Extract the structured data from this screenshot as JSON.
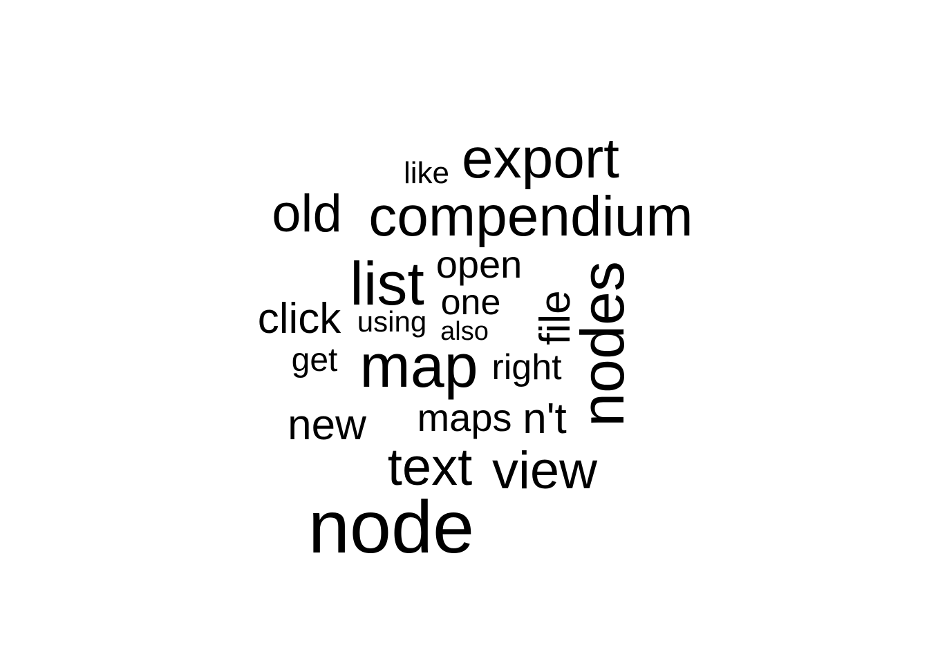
{
  "word_cloud": {
    "words": [
      {
        "id": "node",
        "text": "node",
        "vertical": false
      },
      {
        "id": "compendium",
        "text": "compendium",
        "vertical": false
      },
      {
        "id": "export",
        "text": "export",
        "vertical": false
      },
      {
        "id": "map",
        "text": "map",
        "vertical": false
      },
      {
        "id": "list",
        "text": "list",
        "vertical": false
      },
      {
        "id": "nodes",
        "text": "nodes",
        "vertical": true
      },
      {
        "id": "old",
        "text": "old",
        "vertical": false
      },
      {
        "id": "view",
        "text": "view",
        "vertical": false
      },
      {
        "id": "text",
        "text": "text",
        "vertical": false
      },
      {
        "id": "file",
        "text": "file",
        "vertical": true
      },
      {
        "id": "open",
        "text": "open",
        "vertical": false
      },
      {
        "id": "click",
        "text": "click",
        "vertical": false
      },
      {
        "id": "new",
        "text": "new",
        "vertical": false
      },
      {
        "id": "one",
        "text": "one",
        "vertical": false
      },
      {
        "id": "maps",
        "text": "maps",
        "vertical": false
      },
      {
        "id": "nt",
        "text": "n't",
        "vertical": false
      },
      {
        "id": "right",
        "text": "right",
        "vertical": false
      },
      {
        "id": "get",
        "text": "get",
        "vertical": false
      },
      {
        "id": "using",
        "text": "using",
        "vertical": false
      },
      {
        "id": "like",
        "text": "like",
        "vertical": false
      },
      {
        "id": "also",
        "text": "also",
        "vertical": false
      }
    ]
  }
}
